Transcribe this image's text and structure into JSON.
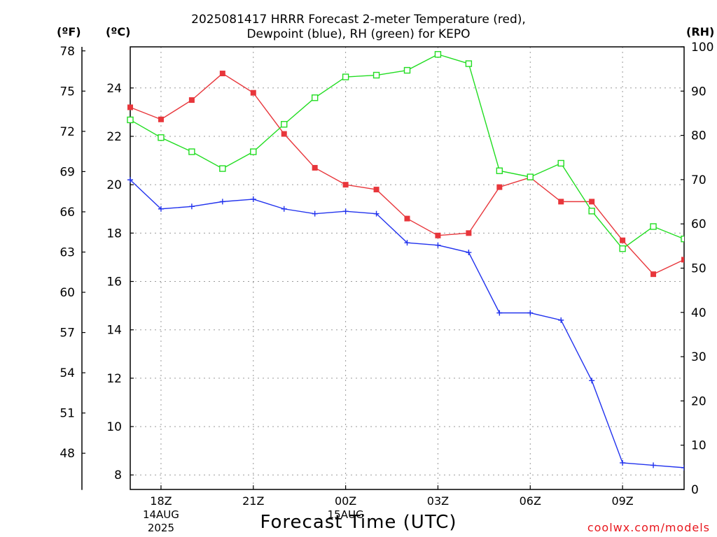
{
  "title_line1": "2025081417 HRRR Forecast 2-meter Temperature (red),",
  "title_line2": "Dewpoint (blue), RH (green) for KEPO",
  "unit_f": "(ºF)",
  "unit_c": "(ºC)",
  "unit_rh": "(RH)",
  "xlabel": "Forecast Time (UTC)",
  "credit": "coolwx.com/models",
  "colors": {
    "temperature": "#e8363b",
    "dewpoint": "#2233ee",
    "rh": "#22dd22"
  },
  "chart_data": {
    "type": "line",
    "title": "2025081417 HRRR Forecast 2-meter Temperature (red), Dewpoint (blue), RH (green) for KEPO",
    "xlabel": "Forecast Time (UTC)",
    "x": [
      "17Z",
      "18Z",
      "19Z",
      "20Z",
      "21Z",
      "22Z",
      "23Z",
      "00Z",
      "01Z",
      "02Z",
      "03Z",
      "04Z",
      "05Z",
      "06Z",
      "07Z",
      "08Z",
      "09Z",
      "10Z",
      "11Z"
    ],
    "x_ticks": [
      {
        "hour": 1,
        "label": "18Z",
        "sub1": "14AUG",
        "sub2": "2025"
      },
      {
        "hour": 4,
        "label": "21Z",
        "sub1": "",
        "sub2": ""
      },
      {
        "hour": 7,
        "label": "00Z",
        "sub1": "15AUG",
        "sub2": ""
      },
      {
        "hour": 10,
        "label": "03Z",
        "sub1": "",
        "sub2": ""
      },
      {
        "hour": 13,
        "label": "06Z",
        "sub1": "",
        "sub2": ""
      },
      {
        "hour": 16,
        "label": "09Z",
        "sub1": "",
        "sub2": ""
      }
    ],
    "x_range": [
      0,
      18
    ],
    "c_axis": {
      "range": [
        7.4,
        25.7
      ],
      "ticks": [
        8,
        10,
        12,
        14,
        16,
        18,
        20,
        22,
        24
      ]
    },
    "f_axis": {
      "range": [
        45.3,
        78.3
      ],
      "ticks": [
        48,
        51,
        54,
        57,
        60,
        63,
        66,
        69,
        72,
        75,
        78
      ]
    },
    "rh_axis": {
      "range": [
        0,
        100
      ],
      "ticks": [
        0,
        10,
        20,
        30,
        40,
        50,
        60,
        70,
        80,
        90,
        100
      ]
    },
    "grid": true,
    "series": [
      {
        "name": "Temperature",
        "axis": "c",
        "marker": "filled-square",
        "values": [
          23.2,
          22.7,
          23.5,
          24.6,
          23.8,
          22.1,
          20.7,
          20.0,
          19.8,
          18.6,
          17.9,
          18.0,
          19.9,
          20.3,
          19.3,
          19.3,
          17.7,
          16.3,
          16.9
        ]
      },
      {
        "name": "Dewpoint",
        "axis": "c",
        "marker": "plus",
        "values": [
          20.2,
          19.0,
          19.1,
          19.3,
          19.4,
          19.0,
          18.8,
          18.9,
          18.8,
          17.6,
          17.5,
          17.2,
          14.7,
          14.7,
          14.4,
          11.9,
          8.5,
          8.4,
          8.3
        ]
      },
      {
        "name": "RH",
        "axis": "rh",
        "marker": "open-square",
        "values": [
          83.5,
          79.5,
          76.3,
          72.5,
          76.3,
          82.5,
          88.5,
          93.2,
          93.6,
          94.7,
          98.3,
          96.2,
          72.0,
          70.6,
          73.7,
          62.9,
          54.4,
          59.4,
          56.6
        ]
      }
    ]
  }
}
